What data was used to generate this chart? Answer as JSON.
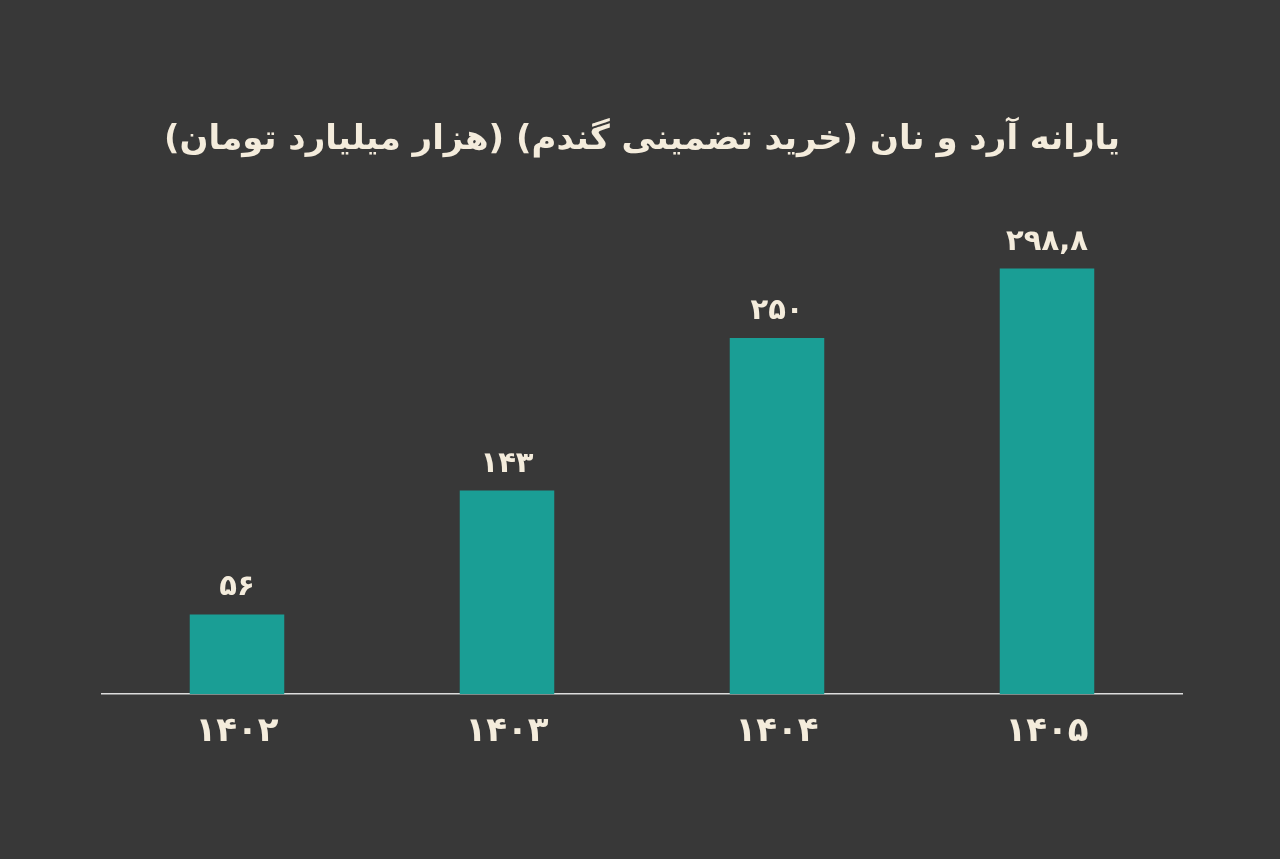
{
  "chart_data": {
    "type": "bar",
    "title": "یارانه آرد و نان (خرید تضمینی گندم) (هزار میلیارد تومان)",
    "categories": [
      "۱۴۰۲",
      "۱۴۰۳",
      "۱۴۰۴",
      "۱۴۰۵"
    ],
    "values": [
      56,
      143,
      250,
      298.8
    ],
    "value_labels": [
      "۵۶",
      "۱۴۳",
      "۲۵۰",
      "۲۹۸,۸"
    ],
    "color": "#1a9e95"
  }
}
